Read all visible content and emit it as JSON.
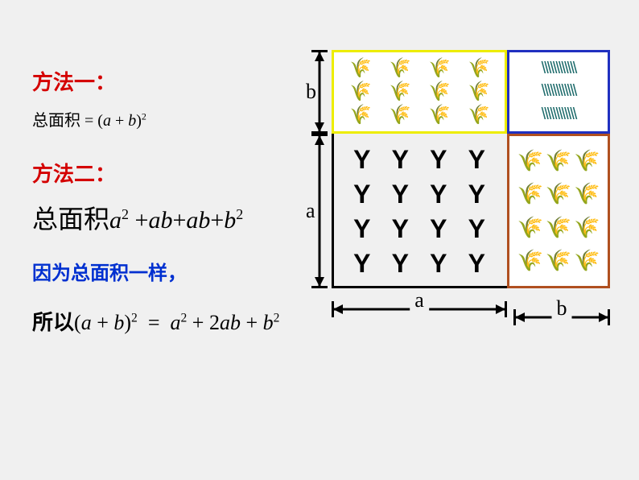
{
  "colors": {
    "background": "#f0f0f0",
    "red": "#d40000",
    "blue": "#0030d0",
    "black": "#000000",
    "yellow_border": "#eded00",
    "blue_border": "#2030c0",
    "brown_border": "#b05020",
    "teal_plant": "#1c6a6a",
    "brown_plant": "#8a5a2a",
    "green_plant": "#2a8a2a"
  },
  "typography": {
    "heading_fontsize": 26,
    "eq_small_fontsize": 20,
    "eq_big_fontsize": 30,
    "blue_fontsize": 24,
    "eq_final_fontsize": 26,
    "dim_label_fontsize": 26
  },
  "left": {
    "method1_title": "方法一：",
    "eq1_lhs": "总面积",
    "eq1_eq": "=",
    "eq1_rhs_open": "(",
    "eq1_a": "a",
    "eq1_plus": "+",
    "eq1_b": "b",
    "eq1_rhs_close": ")",
    "eq1_exp": "2",
    "method2_title": "方法二：",
    "eq2_lhs": "总面积",
    "eq2_eq": "=",
    "eq2_terms": [
      "a",
      "2",
      "+",
      "ab",
      "+",
      "ab",
      "+",
      "b",
      "2"
    ],
    "because": "因为总面积一样，",
    "so": "所以",
    "eq3_lhs_open": "(",
    "eq3_a": "a",
    "eq3_plus1": "+",
    "eq3_b": "b",
    "eq3_lhs_close": ")",
    "eq3_lhs_exp": "2",
    "eq3_eq": "=",
    "eq3_rhs": [
      "a",
      "2",
      "+",
      "2",
      "ab",
      "+",
      "b",
      "2"
    ]
  },
  "diagram": {
    "total_w": 346,
    "total_h": 296,
    "a_w": 218,
    "b_w": 128,
    "b_h": 104,
    "a_h": 192,
    "label_a": "a",
    "label_b": "b",
    "quadrants": {
      "top_left": {
        "rows": 3,
        "cols": 4,
        "glyph": "🌾",
        "color": "#2a8a2a",
        "border": "#eded00"
      },
      "top_right": {
        "rows": 3,
        "cols": 4,
        "glyph": "\\\\\\\\",
        "color": "#1c6a6a",
        "border": "#2030c0"
      },
      "bottom_left": {
        "rows": 4,
        "cols": 4,
        "glyph": "Y",
        "color": "#000000",
        "border": "#000000"
      },
      "bottom_right": {
        "rows": 4,
        "cols": 3,
        "glyph": "🌾",
        "color": "#8a5a2a",
        "border": "#b05020"
      }
    }
  }
}
